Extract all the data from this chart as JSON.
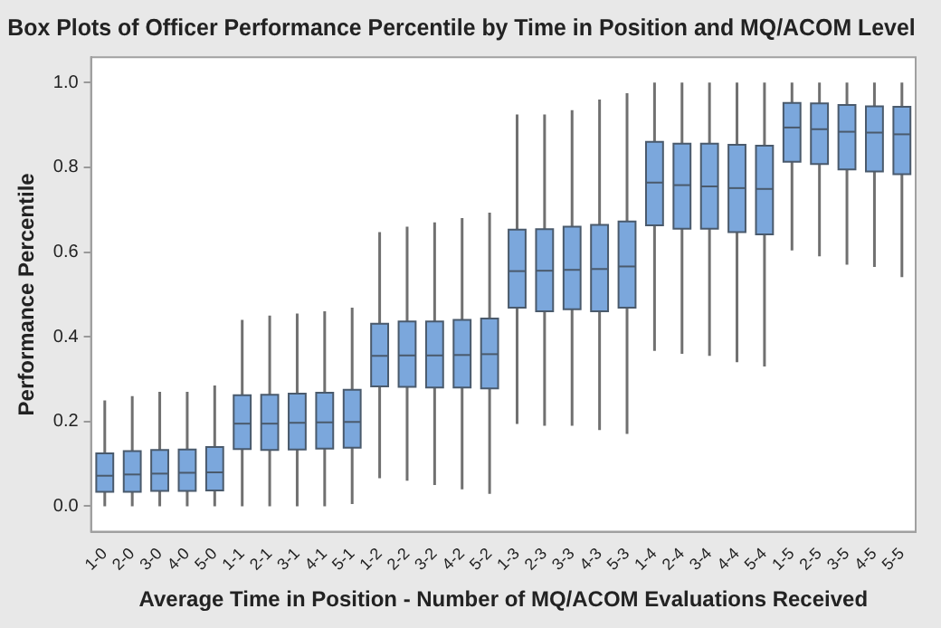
{
  "chart_data": {
    "type": "box",
    "title": "Box Plots of Officer Performance Percentile by Time in Position and MQ/ACOM Level",
    "xlabel": "Average Time in Position - Number of MQ/ACOM Evaluations Received",
    "ylabel": "Performance Percentile",
    "categories": [
      "1-0",
      "2-0",
      "3-0",
      "4-0",
      "5-0",
      "1-1",
      "2-1",
      "3-1",
      "4-1",
      "5-1",
      "1-2",
      "2-2",
      "3-2",
      "4-2",
      "5-2",
      "1-3",
      "2-3",
      "3-3",
      "4-3",
      "5-3",
      "1-4",
      "2-4",
      "3-4",
      "4-4",
      "5-4",
      "1-5",
      "2-5",
      "3-5",
      "4-5",
      "5-5"
    ],
    "color": "#7ba7dc",
    "boxes": [
      {
        "low": 0,
        "q1": 0.034,
        "median": 0.072,
        "q3": 0.125,
        "high": 0.25
      },
      {
        "low": 0,
        "q1": 0.034,
        "median": 0.075,
        "q3": 0.13,
        "high": 0.26
      },
      {
        "low": 0,
        "q1": 0.036,
        "median": 0.077,
        "q3": 0.133,
        "high": 0.27
      },
      {
        "low": 0,
        "q1": 0.036,
        "median": 0.079,
        "q3": 0.134,
        "high": 0.27
      },
      {
        "low": 0,
        "q1": 0.037,
        "median": 0.08,
        "q3": 0.14,
        "high": 0.285
      },
      {
        "low": 0,
        "q1": 0.135,
        "median": 0.195,
        "q3": 0.262,
        "high": 0.44
      },
      {
        "low": 0,
        "q1": 0.133,
        "median": 0.195,
        "q3": 0.263,
        "high": 0.45
      },
      {
        "low": 0,
        "q1": 0.134,
        "median": 0.197,
        "q3": 0.266,
        "high": 0.455
      },
      {
        "low": 0,
        "q1": 0.136,
        "median": 0.198,
        "q3": 0.268,
        "high": 0.46
      },
      {
        "low": 0.005,
        "q1": 0.138,
        "median": 0.199,
        "q3": 0.275,
        "high": 0.469
      },
      {
        "low": 0.066,
        "q1": 0.283,
        "median": 0.355,
        "q3": 0.431,
        "high": 0.647
      },
      {
        "low": 0.06,
        "q1": 0.282,
        "median": 0.356,
        "q3": 0.436,
        "high": 0.66
      },
      {
        "low": 0.05,
        "q1": 0.28,
        "median": 0.356,
        "q3": 0.436,
        "high": 0.67
      },
      {
        "low": 0.04,
        "q1": 0.28,
        "median": 0.357,
        "q3": 0.44,
        "high": 0.68
      },
      {
        "low": 0.029,
        "q1": 0.278,
        "median": 0.359,
        "q3": 0.443,
        "high": 0.693
      },
      {
        "low": 0.194,
        "q1": 0.469,
        "median": 0.555,
        "q3": 0.653,
        "high": 0.925
      },
      {
        "low": 0.19,
        "q1": 0.46,
        "median": 0.556,
        "q3": 0.654,
        "high": 0.925
      },
      {
        "low": 0.19,
        "q1": 0.465,
        "median": 0.558,
        "q3": 0.66,
        "high": 0.935
      },
      {
        "low": 0.18,
        "q1": 0.46,
        "median": 0.56,
        "q3": 0.664,
        "high": 0.96
      },
      {
        "low": 0.171,
        "q1": 0.469,
        "median": 0.566,
        "q3": 0.672,
        "high": 0.975
      },
      {
        "low": 0.367,
        "q1": 0.663,
        "median": 0.764,
        "q3": 0.86,
        "high": 1
      },
      {
        "low": 0.36,
        "q1": 0.655,
        "median": 0.758,
        "q3": 0.856,
        "high": 1
      },
      {
        "low": 0.355,
        "q1": 0.655,
        "median": 0.755,
        "q3": 0.856,
        "high": 1
      },
      {
        "low": 0.34,
        "q1": 0.647,
        "median": 0.751,
        "q3": 0.853,
        "high": 1
      },
      {
        "low": 0.33,
        "q1": 0.642,
        "median": 0.749,
        "q3": 0.851,
        "high": 1
      },
      {
        "low": 0.604,
        "q1": 0.813,
        "median": 0.894,
        "q3": 0.952,
        "high": 1
      },
      {
        "low": 0.59,
        "q1": 0.808,
        "median": 0.89,
        "q3": 0.951,
        "high": 1
      },
      {
        "low": 0.57,
        "q1": 0.795,
        "median": 0.884,
        "q3": 0.947,
        "high": 1
      },
      {
        "low": 0.565,
        "q1": 0.79,
        "median": 0.882,
        "q3": 0.944,
        "high": 1
      },
      {
        "low": 0.541,
        "q1": 0.784,
        "median": 0.878,
        "q3": 0.943,
        "high": 1
      }
    ],
    "ylim": [
      -0.06,
      1.06
    ],
    "yticks": [
      {
        "value": 0,
        "label": "0.0"
      },
      {
        "value": 0.2,
        "label": "0.2"
      },
      {
        "value": 0.4,
        "label": "0.4"
      },
      {
        "value": 0.6,
        "label": "0.6"
      },
      {
        "value": 0.8,
        "label": "0.8"
      },
      {
        "value": 1,
        "label": "1.0"
      }
    ],
    "grid": false,
    "legend": false
  }
}
